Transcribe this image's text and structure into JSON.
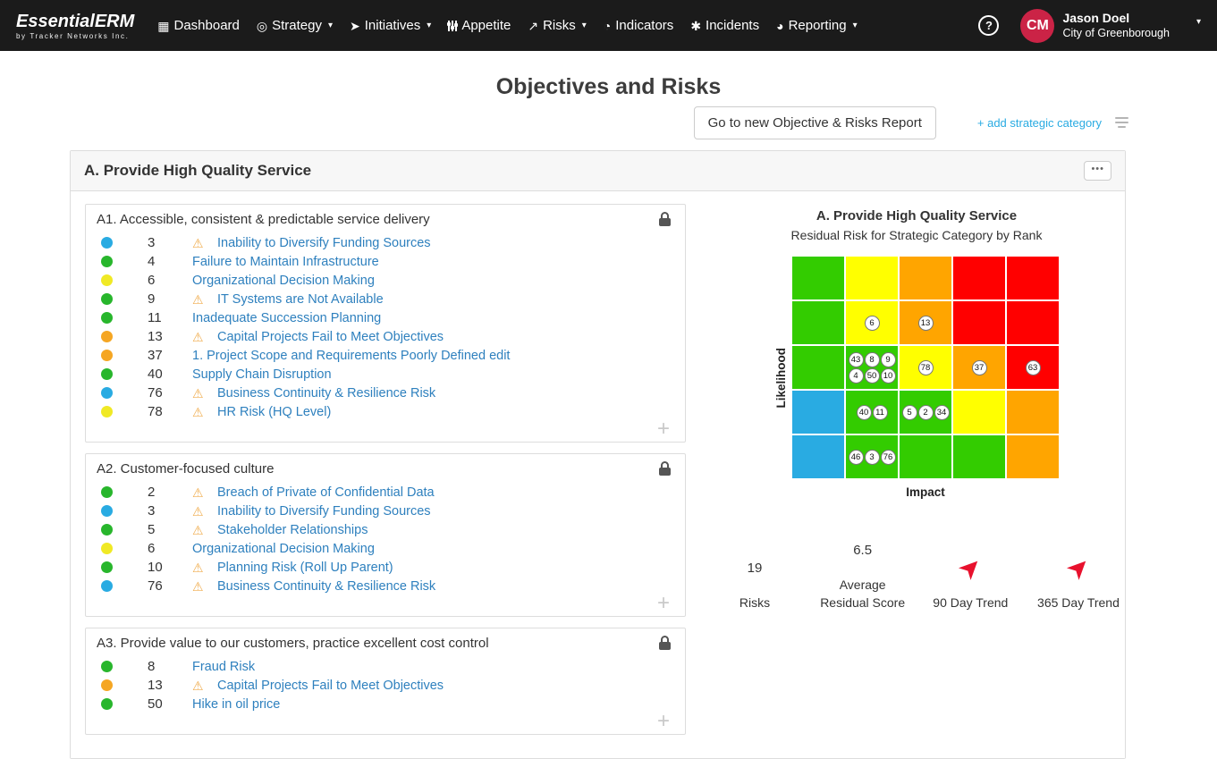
{
  "navbar": {
    "logo_title": "EssentialERM",
    "logo_subtitle": "by Tracker Networks Inc.",
    "items": [
      {
        "label": "Dashboard",
        "icon": "dashboard-grid-icon",
        "dropdown": false
      },
      {
        "label": "Strategy",
        "icon": "strategy-target-icon",
        "dropdown": true
      },
      {
        "label": "Initiatives",
        "icon": "initiatives-rocket-icon",
        "dropdown": true
      },
      {
        "label": "Appetite",
        "icon": "appetite-sliders-icon",
        "dropdown": false
      },
      {
        "label": "Risks",
        "icon": "risks-trend-icon",
        "dropdown": true
      },
      {
        "label": "Indicators",
        "icon": "indicators-gauge-icon",
        "dropdown": false
      },
      {
        "label": "Incidents",
        "icon": "incidents-asterisk-icon",
        "dropdown": false
      },
      {
        "label": "Reporting",
        "icon": "reporting-pie-icon",
        "dropdown": true
      }
    ],
    "help_label": "?",
    "user": {
      "initials": "CM",
      "name": "Jason Doel",
      "org": "City of Greenborough"
    }
  },
  "page": {
    "title": "Objectives and Risks",
    "report_button_label": "Go to new Objective & Risks Report",
    "add_category_label": "+ add strategic category"
  },
  "category": {
    "title": "A. Provide High Quality Service",
    "menu_button_label": "•••",
    "objectives": [
      {
        "title": "A1. Accessible, consistent & predictable service delivery",
        "risks": [
          {
            "color": "blue",
            "rank": "3",
            "warning": true,
            "label": "Inability to Diversify Funding Sources"
          },
          {
            "color": "green",
            "rank": "4",
            "warning": false,
            "label": "Failure to Maintain Infrastructure"
          },
          {
            "color": "yellow",
            "rank": "6",
            "warning": false,
            "label": "Organizational Decision Making"
          },
          {
            "color": "green",
            "rank": "9",
            "warning": true,
            "label": "IT Systems are Not Available"
          },
          {
            "color": "green",
            "rank": "11",
            "warning": false,
            "label": "Inadequate Succession Planning"
          },
          {
            "color": "orange",
            "rank": "13",
            "warning": true,
            "label": "Capital Projects Fail to Meet Objectives"
          },
          {
            "color": "orange",
            "rank": "37",
            "warning": false,
            "label": "1. Project Scope and Requirements Poorly Defined edit"
          },
          {
            "color": "green",
            "rank": "40",
            "warning": false,
            "label": "Supply Chain Disruption"
          },
          {
            "color": "blue",
            "rank": "76",
            "warning": true,
            "label": "Business Continuity & Resilience Risk"
          },
          {
            "color": "yellow",
            "rank": "78",
            "warning": true,
            "label": "HR Risk (HQ Level)"
          }
        ]
      },
      {
        "title": "A2. Customer-focused culture",
        "risks": [
          {
            "color": "green",
            "rank": "2",
            "warning": true,
            "label": "Breach of Private of Confidential Data"
          },
          {
            "color": "blue",
            "rank": "3",
            "warning": true,
            "label": "Inability to Diversify Funding Sources"
          },
          {
            "color": "green",
            "rank": "5",
            "warning": true,
            "label": "Stakeholder Relationships"
          },
          {
            "color": "yellow",
            "rank": "6",
            "warning": false,
            "label": "Organizational Decision Making"
          },
          {
            "color": "green",
            "rank": "10",
            "warning": true,
            "label": "Planning Risk (Roll Up Parent)"
          },
          {
            "color": "blue",
            "rank": "76",
            "warning": true,
            "label": "Business Continuity & Resilience Risk"
          }
        ]
      },
      {
        "title": "A3. Provide value to our customers, practice excellent cost control",
        "risks": [
          {
            "color": "green",
            "rank": "8",
            "warning": false,
            "label": "Fraud Risk"
          },
          {
            "color": "orange",
            "rank": "13",
            "warning": true,
            "label": "Capital Projects Fail to Meet Objectives"
          },
          {
            "color": "green",
            "rank": "50",
            "warning": false,
            "label": "Hike in oil price"
          }
        ]
      }
    ],
    "heatmap": {
      "title": "A. Provide High Quality Service",
      "subtitle": "Residual Risk for Strategic Category by Rank",
      "ylabel": "Likelihood",
      "xlabel": "Impact",
      "rows": [
        [
          {
            "color": "green"
          },
          {
            "color": "yellow"
          },
          {
            "color": "orange"
          },
          {
            "color": "red"
          },
          {
            "color": "red"
          }
        ],
        [
          {
            "color": "green"
          },
          {
            "color": "yellow",
            "badges": [
              "6"
            ]
          },
          {
            "color": "orange",
            "badges": [
              "13"
            ]
          },
          {
            "color": "red"
          },
          {
            "color": "red"
          }
        ],
        [
          {
            "color": "green"
          },
          {
            "color": "green",
            "badges": [
              "43",
              "8",
              "9",
              "4",
              "50",
              "10"
            ]
          },
          {
            "color": "yellow",
            "badges": [
              "78"
            ]
          },
          {
            "color": "orange",
            "badges": [
              "37"
            ]
          },
          {
            "color": "red",
            "badges": [
              "63"
            ]
          }
        ],
        [
          {
            "color": "blue"
          },
          {
            "color": "green",
            "badges": [
              "40",
              "11"
            ]
          },
          {
            "color": "green",
            "badges": [
              "5",
              "2",
              "34"
            ]
          },
          {
            "color": "yellow"
          },
          {
            "color": "orange"
          }
        ],
        [
          {
            "color": "blue"
          },
          {
            "color": "green",
            "badges": [
              "46",
              "3",
              "76"
            ]
          },
          {
            "color": "green"
          },
          {
            "color": "green"
          },
          {
            "color": "orange"
          }
        ]
      ]
    },
    "stats": [
      {
        "value": "19",
        "label": "Risks",
        "trend": false
      },
      {
        "value": "6.5",
        "label": "Average Residual Score",
        "trend": false
      },
      {
        "value": "",
        "label": "90 Day Trend",
        "trend": true
      },
      {
        "value": "",
        "label": "365 Day Trend",
        "trend": true
      }
    ]
  },
  "colors": {
    "navbar_bg": "#1B1B1B",
    "accent_blue": "#29ABE2",
    "link_blue": "#2E80BE",
    "warning": "#F0AD4E",
    "avatar_bg": "#CB2346",
    "trend_red": "#E8112D",
    "dot": {
      "blue": "#29ABE2",
      "green": "#28B62C",
      "yellow": "#F0E925",
      "orange": "#F5A623"
    },
    "matrix": {
      "green": "#33CC00",
      "yellow": "#FFFF00",
      "orange": "#FFA500",
      "red": "#FF0000",
      "blue": "#29ABE2"
    }
  }
}
